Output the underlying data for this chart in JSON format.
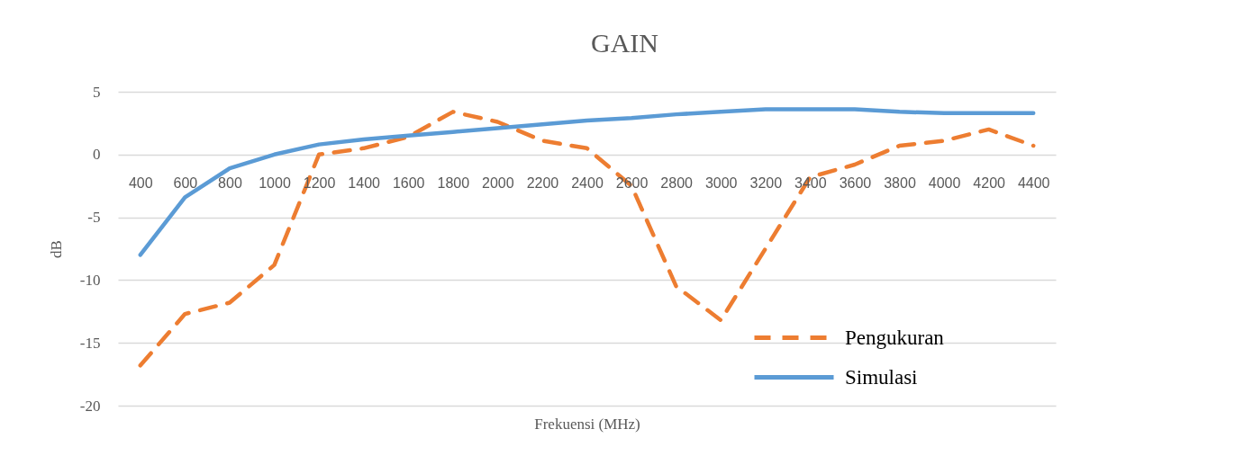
{
  "chart_data": {
    "type": "line",
    "title": "GAIN",
    "xlabel": "Frekuensi (MHz)",
    "ylabel": "dB",
    "categories": [
      "400",
      "600",
      "800",
      "1000",
      "1200",
      "1400",
      "1600",
      "1800",
      "2000",
      "2200",
      "2400",
      "2600",
      "2800",
      "3000",
      "3200",
      "3400",
      "3600",
      "3800",
      "4000",
      "4200",
      "4400"
    ],
    "series": [
      {
        "name": "Pengukuran",
        "color": "#ed7d31",
        "line_style": "dashed",
        "values": [
          -16.8,
          -12.7,
          -11.8,
          -8.8,
          0,
          0.5,
          1.4,
          3.4,
          2.6,
          1.1,
          0.5,
          -2.5,
          -10.5,
          -13.2,
          -7.5,
          -1.8,
          -0.8,
          0.7,
          1.1,
          2.0,
          0.7
        ]
      },
      {
        "name": "Simulasi",
        "color": "#5b9bd5",
        "line_style": "solid",
        "values": [
          -8.0,
          -3.4,
          -1.1,
          0,
          0.8,
          1.2,
          1.5,
          1.8,
          2.1,
          2.4,
          2.7,
          2.9,
          3.2,
          3.4,
          3.6,
          3.6,
          3.6,
          3.4,
          3.3,
          3.3,
          3.3
        ]
      }
    ],
    "ylim": [
      -20,
      5
    ],
    "yticks": [
      -20,
      -15,
      -10,
      -5,
      0,
      5
    ],
    "grid": "y",
    "legend": "bottom right"
  }
}
